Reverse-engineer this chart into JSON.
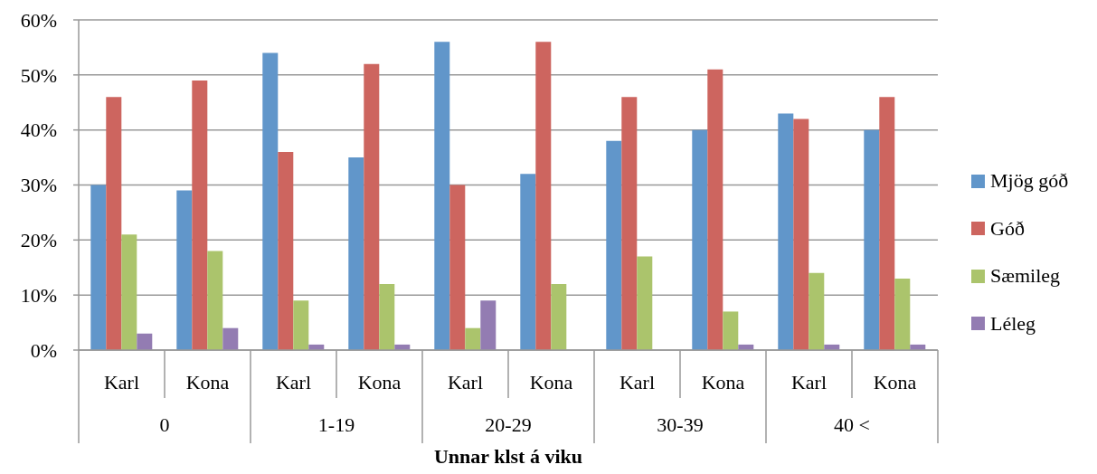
{
  "chart_data": {
    "type": "bar",
    "xlabel": "Unnar klst á viku",
    "categories": [
      "Karl",
      "Kona",
      "Karl",
      "Kona",
      "Karl",
      "Kona",
      "Karl",
      "Kona",
      "Karl",
      "Kona"
    ],
    "annotations": [
      "0",
      "1-19",
      "20-29",
      "30-39",
      "40 <"
    ],
    "series": [
      {
        "name": "Mjög góð",
        "color": "#6196ca",
        "values": [
          30,
          29,
          54,
          35,
          56,
          32,
          38,
          40,
          43,
          40
        ]
      },
      {
        "name": "Góð",
        "color": "#cd655f",
        "values": [
          46,
          49,
          36,
          52,
          30,
          56,
          46,
          51,
          42,
          46
        ]
      },
      {
        "name": "Sæmileg",
        "color": "#abc46c",
        "values": [
          21,
          18,
          9,
          12,
          4,
          12,
          17,
          7,
          14,
          13
        ]
      },
      {
        "name": "Léleg",
        "color": "#937cb2",
        "values": [
          3,
          4,
          1,
          1,
          9,
          0,
          0,
          1,
          1,
          1
        ]
      }
    ],
    "ylim": [
      0,
      60
    ],
    "yticks": [
      {
        "value": 0,
        "label": "0%"
      },
      {
        "value": 10,
        "label": "10%"
      },
      {
        "value": 20,
        "label": "20%"
      },
      {
        "value": 30,
        "label": "30%"
      },
      {
        "value": 40,
        "label": "40%"
      },
      {
        "value": 50,
        "label": "50%"
      },
      {
        "value": 60,
        "label": "60%"
      }
    ],
    "grid": "y",
    "legend": "right"
  }
}
